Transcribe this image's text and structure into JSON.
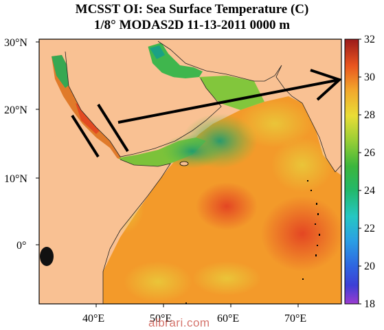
{
  "title": {
    "line1": "MCSST OI:  Sea Surface Temperature (C)",
    "line2": "1/8° MODAS2D 11-13-2011 0000 m"
  },
  "lat_labels": [
    "30°N",
    "20°N",
    "10°N",
    "0°"
  ],
  "lon_labels": [
    "40°E",
    "50°E",
    "60°E",
    "70°E"
  ],
  "colorbar": {
    "min": 18,
    "max": 32,
    "ticks": [
      "18",
      "20",
      "22",
      "24",
      "26",
      "28",
      "30",
      "32"
    ]
  },
  "colors": {
    "land": "#f9c193",
    "warm_sea": "#f39a2a",
    "hot_sea": "#e8562a",
    "cool_sea": "#3fb34a",
    "very_cool_sea": "#17a088",
    "arrow": "#000000"
  },
  "watermark": "albrari.com"
}
